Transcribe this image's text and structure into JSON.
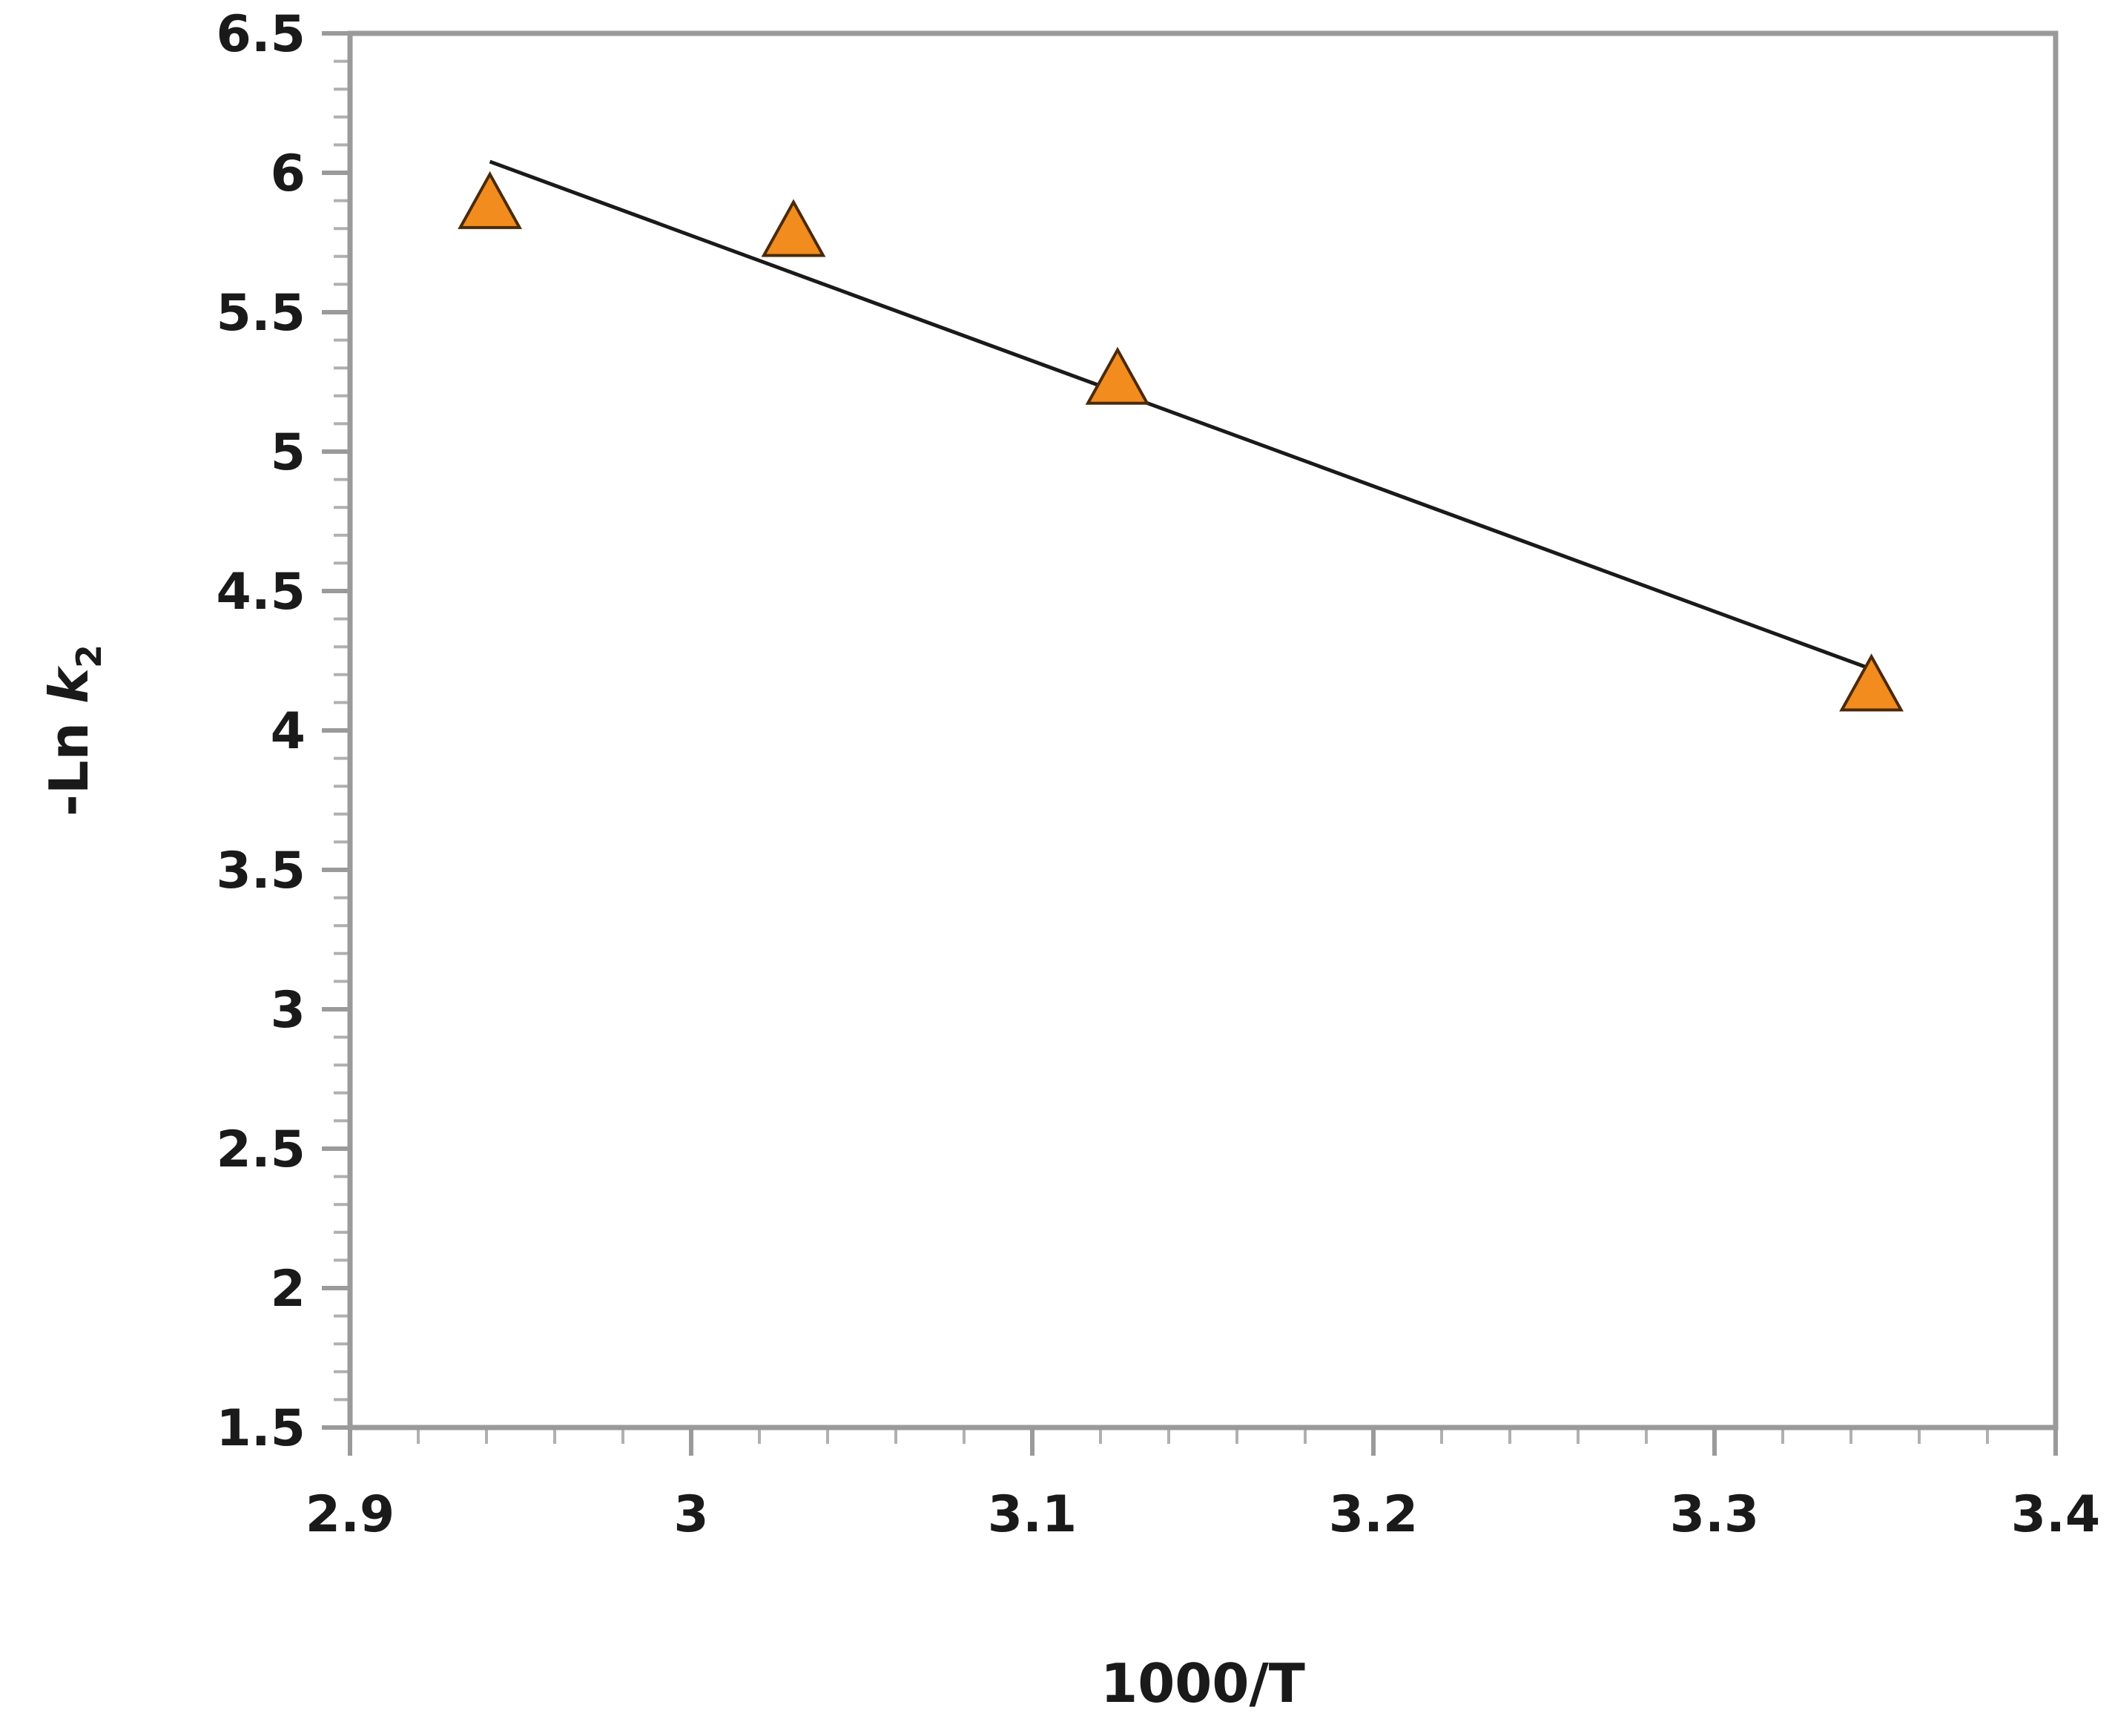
{
  "chart_data": {
    "type": "scatter",
    "xlabel": "1000/T",
    "ylabel_prefix": "-Ln ",
    "ylabel_var": "k",
    "ylabel_sub": "2",
    "xlim": [
      2.9,
      3.4
    ],
    "ylim": [
      1.5,
      6.5
    ],
    "xticks": [
      2.9,
      3.0,
      3.1,
      3.2,
      3.3,
      3.4
    ],
    "xtick_labels": [
      "2.9",
      "3",
      "3.1",
      "3.2",
      "3.3",
      "3.4"
    ],
    "yticks": [
      1.5,
      2.0,
      2.5,
      3.0,
      3.5,
      4.0,
      4.5,
      5.0,
      5.5,
      6.0,
      6.5
    ],
    "ytick_labels": [
      "1.5",
      "2",
      "2.5",
      "3",
      "3.5",
      "4",
      "4.5",
      "5",
      "5.5",
      "6",
      "6.5"
    ],
    "grid": false,
    "legend": "none",
    "marker": "triangle",
    "marker_color": "#F28C1E",
    "series": [
      {
        "x": [
          2.941,
          3.03,
          3.125,
          3.346
        ],
        "y": [
          5.88,
          5.78,
          5.25,
          4.15
        ]
      }
    ],
    "trendline": {
      "x": [
        2.941,
        3.346
      ],
      "y": [
        6.04,
        4.22
      ]
    }
  }
}
